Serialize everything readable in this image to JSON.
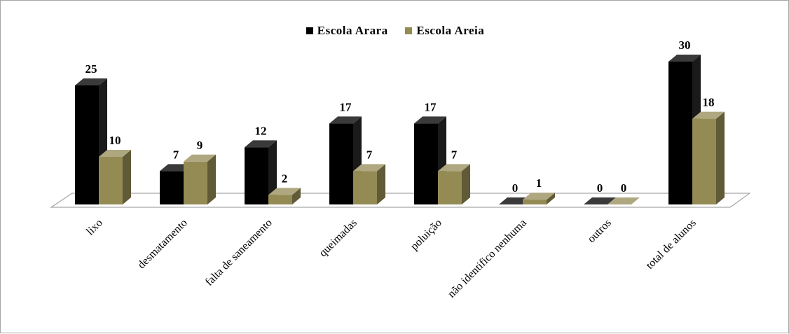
{
  "chart_data": {
    "type": "bar",
    "categories": [
      "lixo",
      "desmatamento",
      "falta de saneamento",
      "queimadas",
      "poluição",
      "não identifico nenhuma",
      "outros",
      "total de alunos"
    ],
    "series": [
      {
        "name": "Escola Arara",
        "values": [
          25,
          7,
          12,
          17,
          17,
          0,
          0,
          30
        ],
        "color": "#000000"
      },
      {
        "name": "Escola Areia",
        "values": [
          10,
          9,
          2,
          7,
          7,
          1,
          0,
          18
        ],
        "color": "#948a54"
      }
    ],
    "ylim": [
      0,
      30
    ],
    "grid": false,
    "legend": "top-center",
    "three_d": true
  }
}
